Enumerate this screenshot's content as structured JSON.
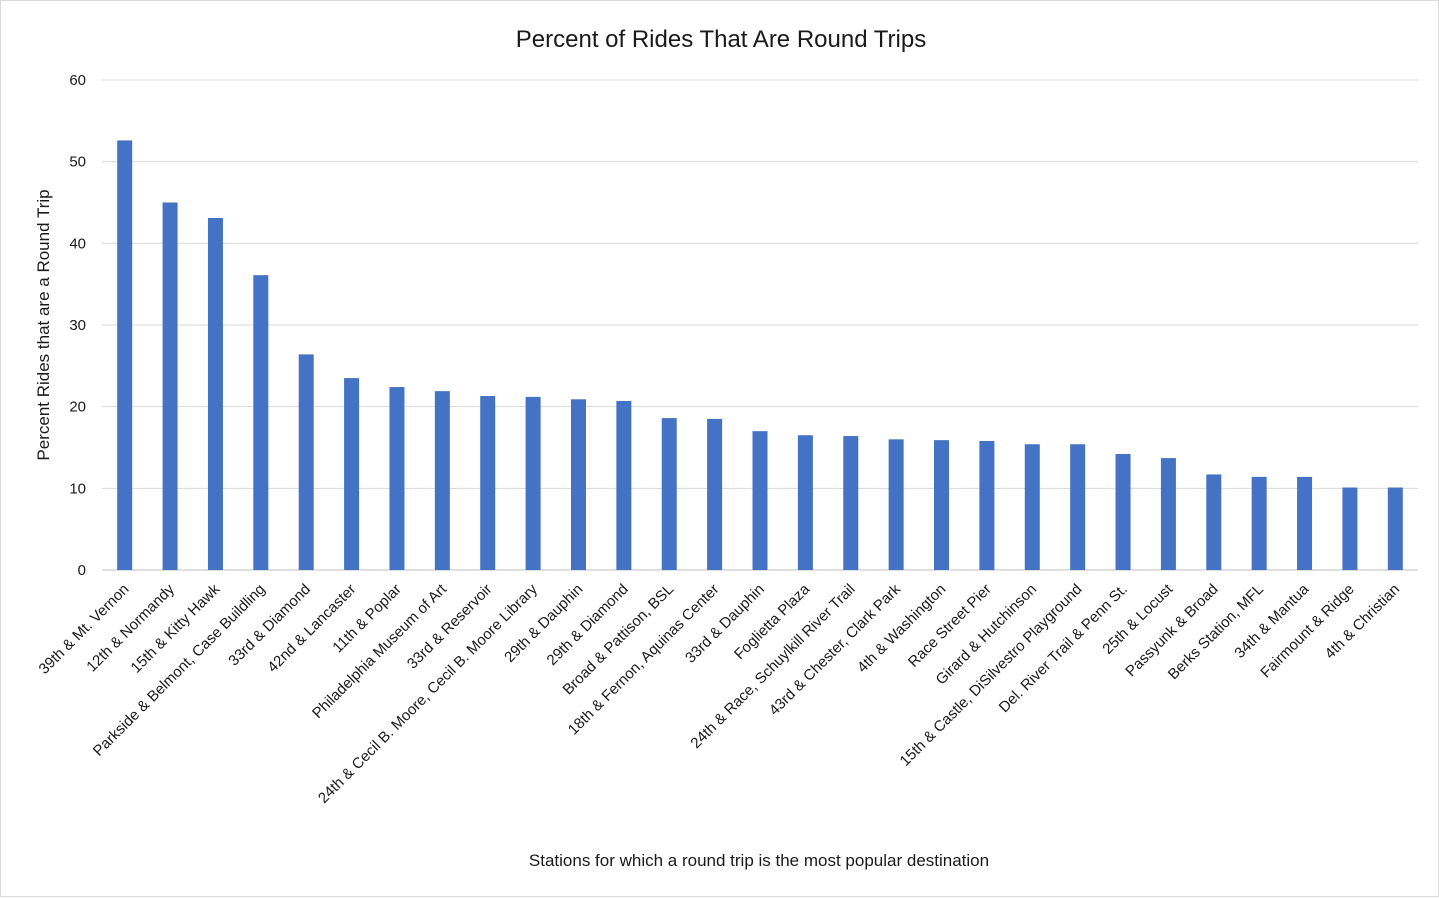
{
  "chart_data": {
    "type": "bar",
    "title": "Percent of Rides That Are Round Trips",
    "xlabel": "Stations for which a round trip is the most popular destination",
    "ylabel": "Percent Rides that are a Round Trip",
    "ylim": [
      0,
      60
    ],
    "yticks": [
      0,
      10,
      20,
      30,
      40,
      50,
      60
    ],
    "grid": true,
    "legend": "none",
    "bar_color": "#4472C4",
    "categories": [
      "39th & Mt. Vernon",
      "12th & Normandy",
      "15th & Kitty Hawk",
      "Parkside & Belmont, Case Buildling",
      "33rd & Diamond",
      "42nd & Lancaster",
      "11th & Poplar",
      "Philadelphia Museum of Art",
      "33rd & Reservoir",
      "24th & Cecil B. Moore, Cecil B. Moore Library",
      "29th & Dauphin",
      "29th & Diamond",
      "Broad & Pattison, BSL",
      "18th & Fernon, Aquinas Center",
      "33rd & Dauphin",
      "Foglietta Plaza",
      "24th & Race, Schuylkill River Trail",
      "43rd & Chester, Clark Park",
      "4th & Washington",
      "Race Street Pier",
      "Girard & Hutchinson",
      "15th & Castle, DiSilvestro Playground",
      "Del. River Trail & Penn St.",
      "25th & Locust",
      "Passyunk & Broad",
      "Berks Station, MFL",
      "34th & Mantua",
      "Fairmount & Ridge",
      "4th & Christian"
    ],
    "values": [
      52.6,
      45.0,
      43.1,
      36.1,
      26.4,
      23.5,
      22.4,
      21.9,
      21.3,
      21.2,
      20.9,
      20.7,
      18.6,
      18.5,
      17.0,
      16.5,
      16.4,
      16.0,
      15.9,
      15.8,
      15.4,
      15.4,
      14.2,
      13.7,
      11.7,
      11.4,
      11.4,
      10.1,
      10.1
    ]
  }
}
